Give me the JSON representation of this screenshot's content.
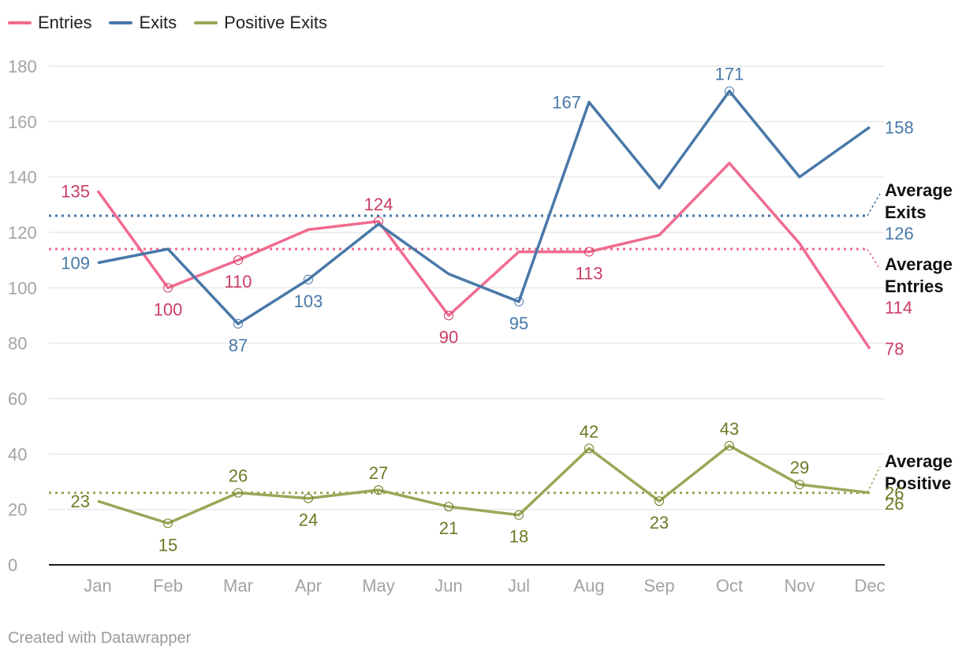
{
  "colors": {
    "entries": "#f06b8f",
    "entries_label": "#cc3d64",
    "exits": "#4878a8",
    "exits_label": "#4878a8",
    "positive": "#98a858",
    "positive_label": "#6b7a25",
    "grid": "#e2e2e2",
    "axis": "#1a1a1a",
    "tick": "#a3a3a3"
  },
  "legend": [
    {
      "label": "Entries",
      "color": "#f06b8f"
    },
    {
      "label": "Exits",
      "color": "#4878a8"
    },
    {
      "label": "Positive Exits",
      "color": "#98a858"
    }
  ],
  "footer": "Created with Datawrapper",
  "chart_data": {
    "type": "line",
    "categories": [
      "Jan",
      "Feb",
      "Mar",
      "Apr",
      "May",
      "Jun",
      "Jul",
      "Aug",
      "Sep",
      "Oct",
      "Nov",
      "Dec"
    ],
    "ylim": [
      0,
      180
    ],
    "yticks": [
      0,
      20,
      40,
      60,
      80,
      100,
      120,
      140,
      160,
      180
    ],
    "grid": true,
    "legend_position": "top-left",
    "series": [
      {
        "name": "Entries",
        "key": "entries",
        "values": [
          135,
          100,
          110,
          121,
          124,
          90,
          113,
          113,
          119,
          145,
          116,
          78
        ],
        "labeled": [
          0,
          1,
          2,
          4,
          5,
          7,
          11
        ],
        "label_pos": [
          "left",
          "below",
          "below",
          "",
          "above",
          "below",
          "",
          "below",
          "",
          "",
          "",
          "right"
        ]
      },
      {
        "name": "Exits",
        "key": "exits",
        "values": [
          109,
          114,
          87,
          103,
          123,
          105,
          95,
          167,
          136,
          171,
          140,
          158
        ],
        "labeled": [
          0,
          2,
          3,
          6,
          7,
          9,
          11
        ],
        "label_pos": [
          "left",
          "",
          "below",
          "below",
          "",
          "",
          "below",
          "left",
          "",
          "above",
          "",
          "right"
        ]
      },
      {
        "name": "Positive Exits",
        "key": "positive",
        "values": [
          23,
          15,
          26,
          24,
          27,
          21,
          18,
          42,
          23,
          43,
          29,
          26
        ],
        "labeled": [
          0,
          1,
          2,
          3,
          4,
          5,
          6,
          7,
          8,
          9,
          10,
          11
        ],
        "label_pos": [
          "left",
          "below",
          "above",
          "below",
          "above",
          "below",
          "below",
          "above",
          "below",
          "above",
          "above",
          "right"
        ]
      }
    ],
    "averages": [
      {
        "key": "exits",
        "name": "Average Exits",
        "value": 126,
        "label_line1": "Average",
        "label_line2": "Exits",
        "value_text": "126"
      },
      {
        "key": "entries",
        "name": "Average Entries",
        "value": 114,
        "label_line1": "Average",
        "label_line2": "Entries",
        "value_text": "114"
      },
      {
        "key": "positive",
        "name": "Average Positive",
        "value": 26,
        "label_line1": "Average",
        "label_line2": "Positive",
        "value_text": "26"
      }
    ]
  }
}
